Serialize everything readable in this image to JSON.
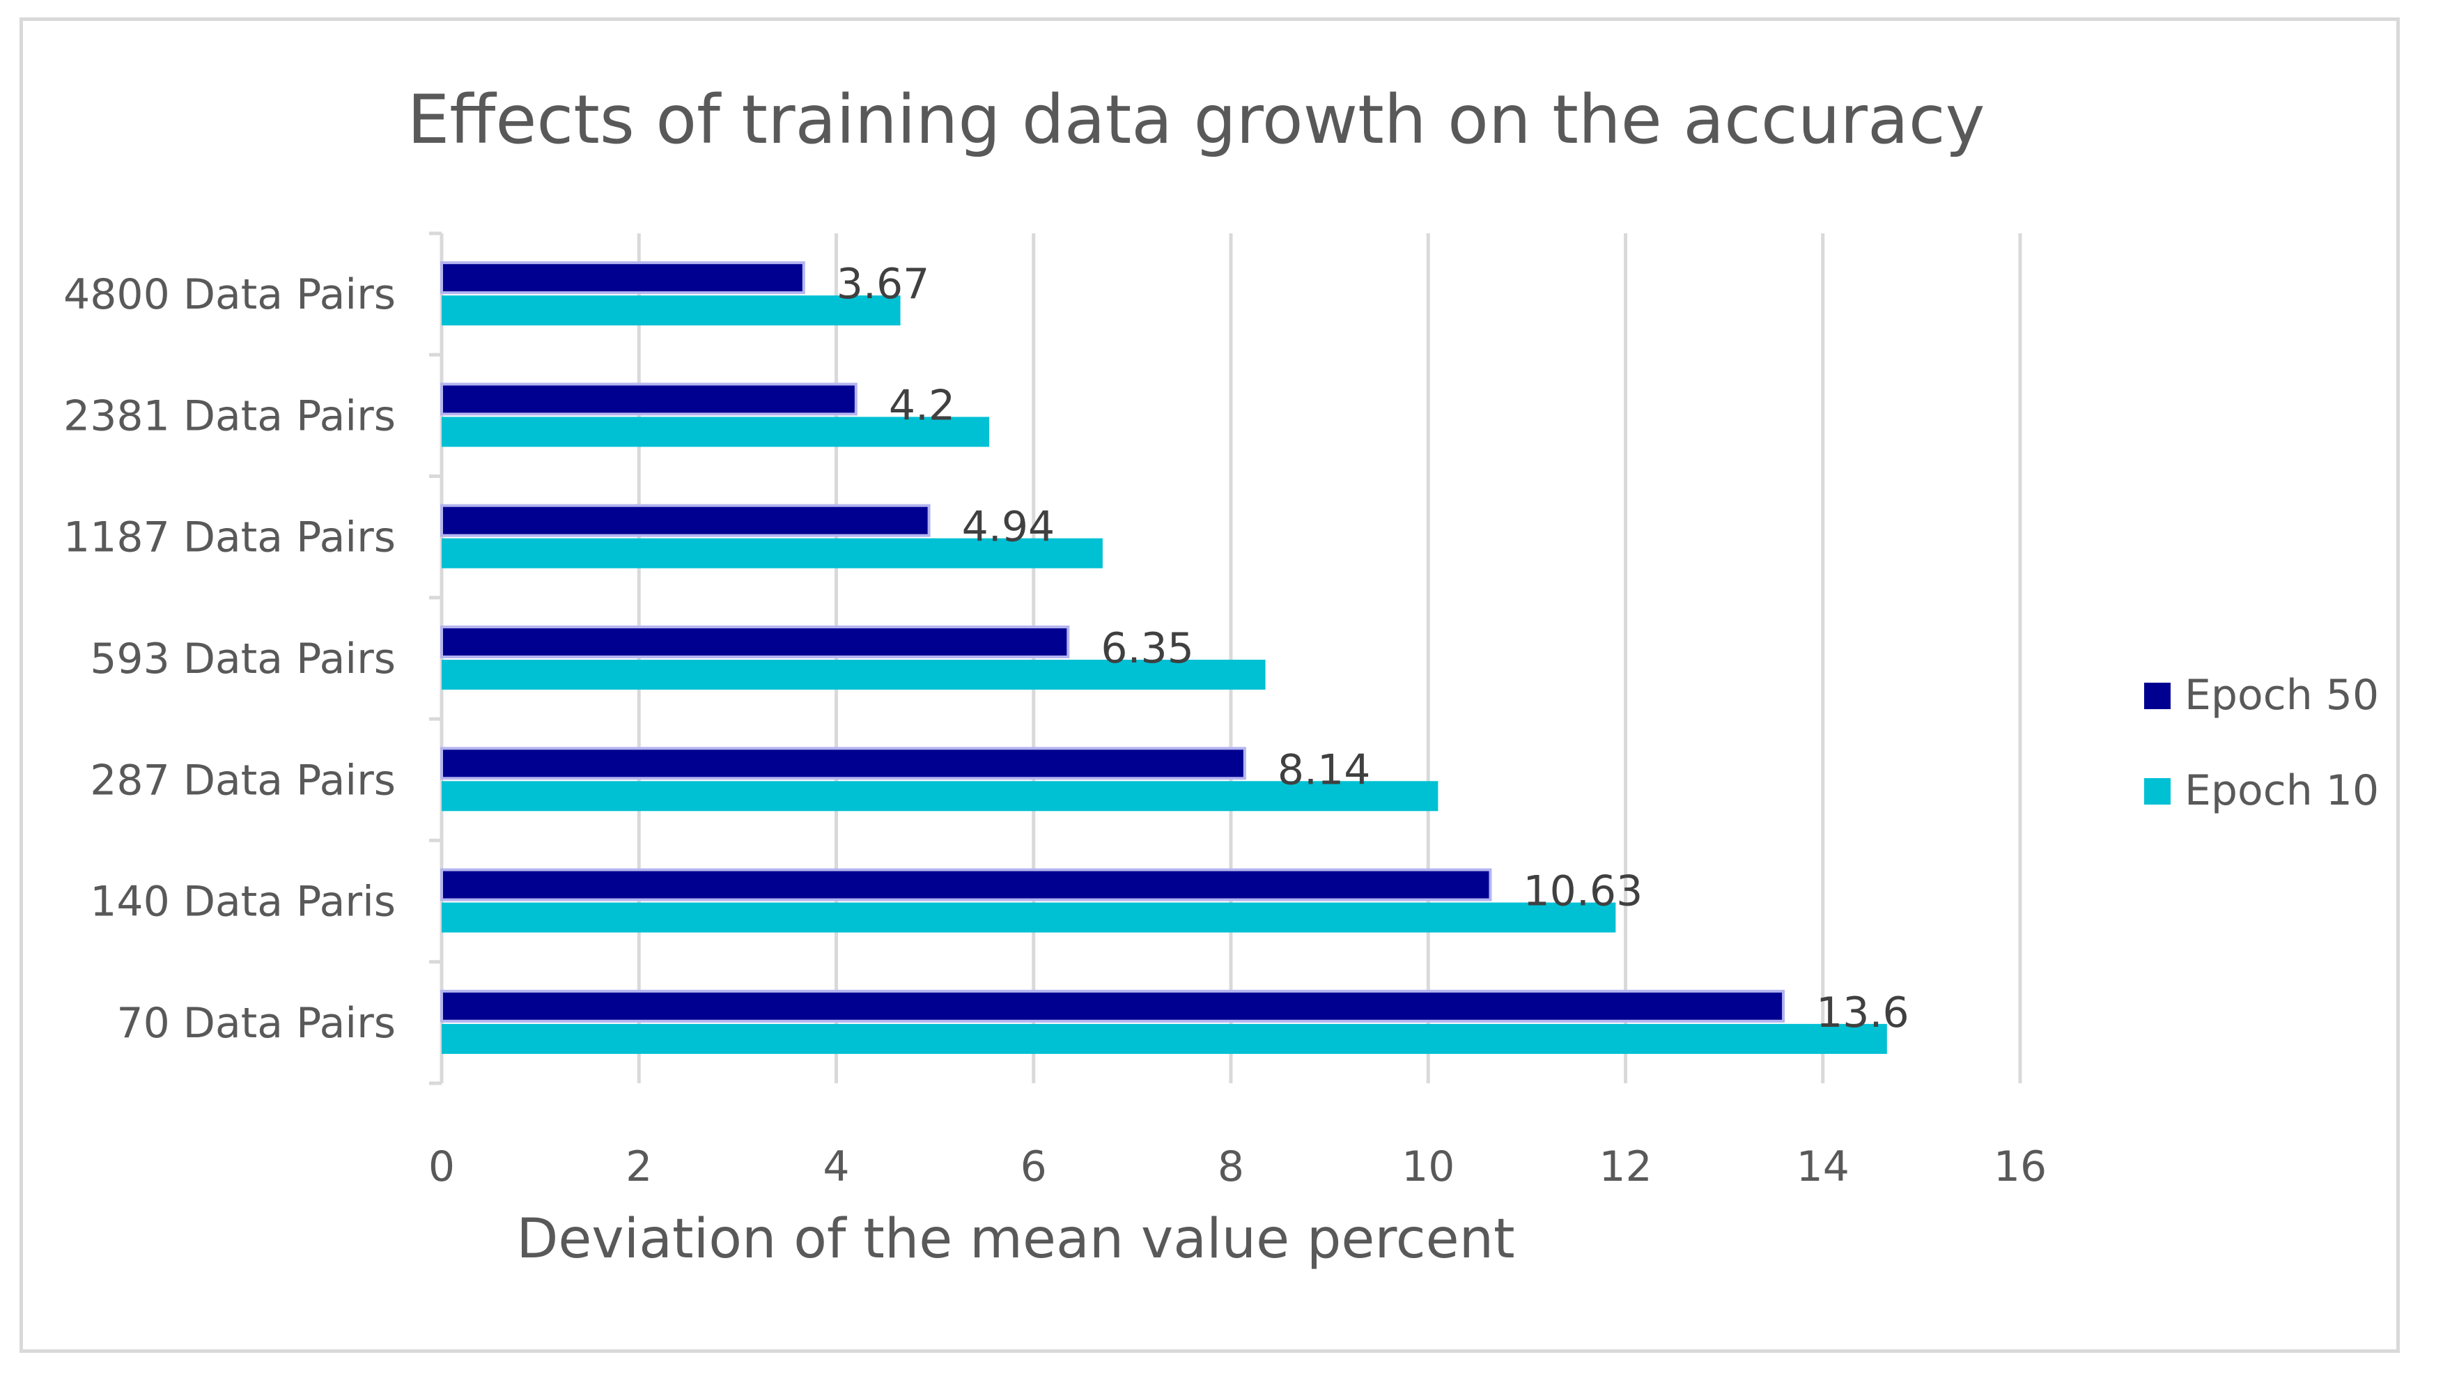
{
  "chart_data": {
    "type": "bar",
    "orientation": "horizontal",
    "title": "Effects of training data growth on the accuracy",
    "xlabel": "Deviation of the mean value percent",
    "ylabel": "",
    "xlim": [
      0,
      16
    ],
    "x_ticks": [
      "0",
      "2",
      "4",
      "6",
      "8",
      "10",
      "12",
      "14",
      "16"
    ],
    "grid": true,
    "legend_position": "right",
    "categories": [
      "4800 Data Pairs",
      "2381 Data Pairs",
      "1187 Data Pairs",
      "593 Data Pairs",
      "287 Data Pairs",
      "140 Data Paris",
      "70 Data Pairs"
    ],
    "series": [
      {
        "name": "Epoch 50",
        "color": "#000090",
        "values": [
          3.67,
          4.2,
          4.94,
          6.35,
          8.14,
          10.63,
          13.6
        ],
        "data_labels": [
          "3.67",
          "4.2",
          "4.94",
          "6.35",
          "8.14",
          "10.63",
          "13.6"
        ]
      },
      {
        "name": "Epoch 10",
        "color": "#00C0D4",
        "values": [
          4.65,
          5.55,
          6.7,
          8.35,
          10.1,
          11.9,
          14.65
        ],
        "data_labels": []
      }
    ]
  }
}
